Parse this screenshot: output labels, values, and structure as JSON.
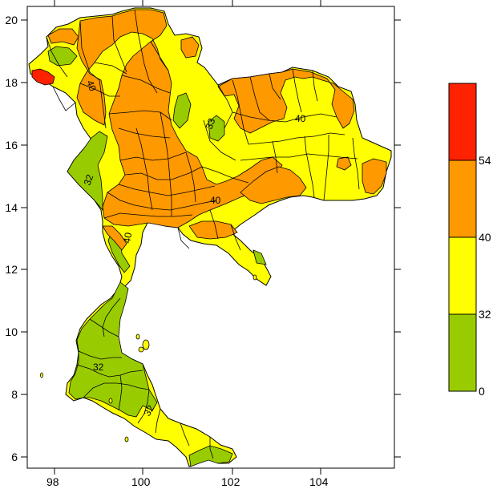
{
  "map": {
    "x_axis": {
      "ticks": [
        "98",
        "100",
        "102",
        "104"
      ]
    },
    "y_axis": {
      "ticks": [
        "6",
        "8",
        "10",
        "12",
        "14",
        "16",
        "18",
        "20"
      ]
    },
    "contour_labels": [
      "40",
      "40",
      "40",
      "40",
      "32",
      "32",
      "32",
      "33"
    ],
    "colors": {
      "green": "#99cc00",
      "yellow": "#ffff00",
      "orange": "#ff9900",
      "red": "#ff2200",
      "border": "#000000"
    }
  },
  "legend": {
    "levels": [
      "0",
      "32",
      "40",
      "54"
    ],
    "bands": [
      {
        "color": "#99cc00"
      },
      {
        "color": "#ffff00"
      },
      {
        "color": "#ff9900"
      },
      {
        "color": "#ff2200"
      }
    ]
  }
}
